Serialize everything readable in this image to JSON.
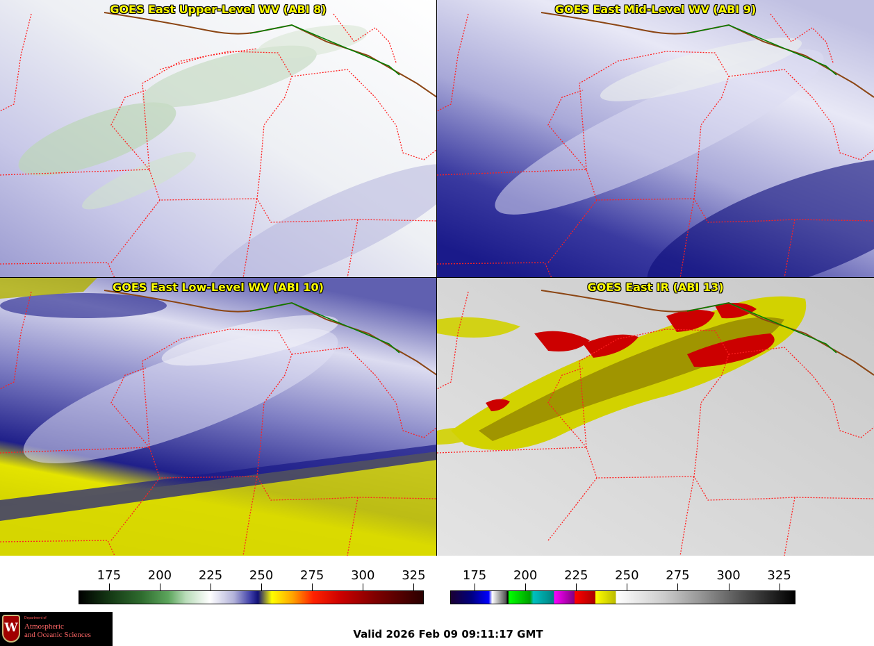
{
  "panels": [
    {
      "id": "upper",
      "title": "GOES East Upper-Level WV (ABI 8)"
    },
    {
      "id": "mid",
      "title": "GOES East Mid-Level WV (ABI 9)"
    },
    {
      "id": "low",
      "title": "GOES East Low-Level WV (ABI 10)"
    },
    {
      "id": "ir",
      "title": "GOES East IR (ABI 13)"
    }
  ],
  "colorbars": {
    "left": {
      "ticks": [
        "175",
        "200",
        "225",
        "250",
        "275",
        "300",
        "325"
      ],
      "range": [
        160,
        330
      ]
    },
    "right": {
      "ticks": [
        "175",
        "200",
        "225",
        "250",
        "275",
        "300",
        "325"
      ],
      "range": [
        163,
        333
      ]
    }
  },
  "footer": {
    "valid_time": "Valid 2026 Feb 09 09:11:17 GMT"
  },
  "logo": {
    "dept": "Department of",
    "line1": "Atmospheric",
    "line2": "and Oceanic Sciences",
    "crest_letter": "W"
  },
  "colors": {
    "title_text": "#ffff00",
    "state_borders": "#ff2020",
    "country_border": "#008000",
    "coastline": "#8b4513"
  }
}
